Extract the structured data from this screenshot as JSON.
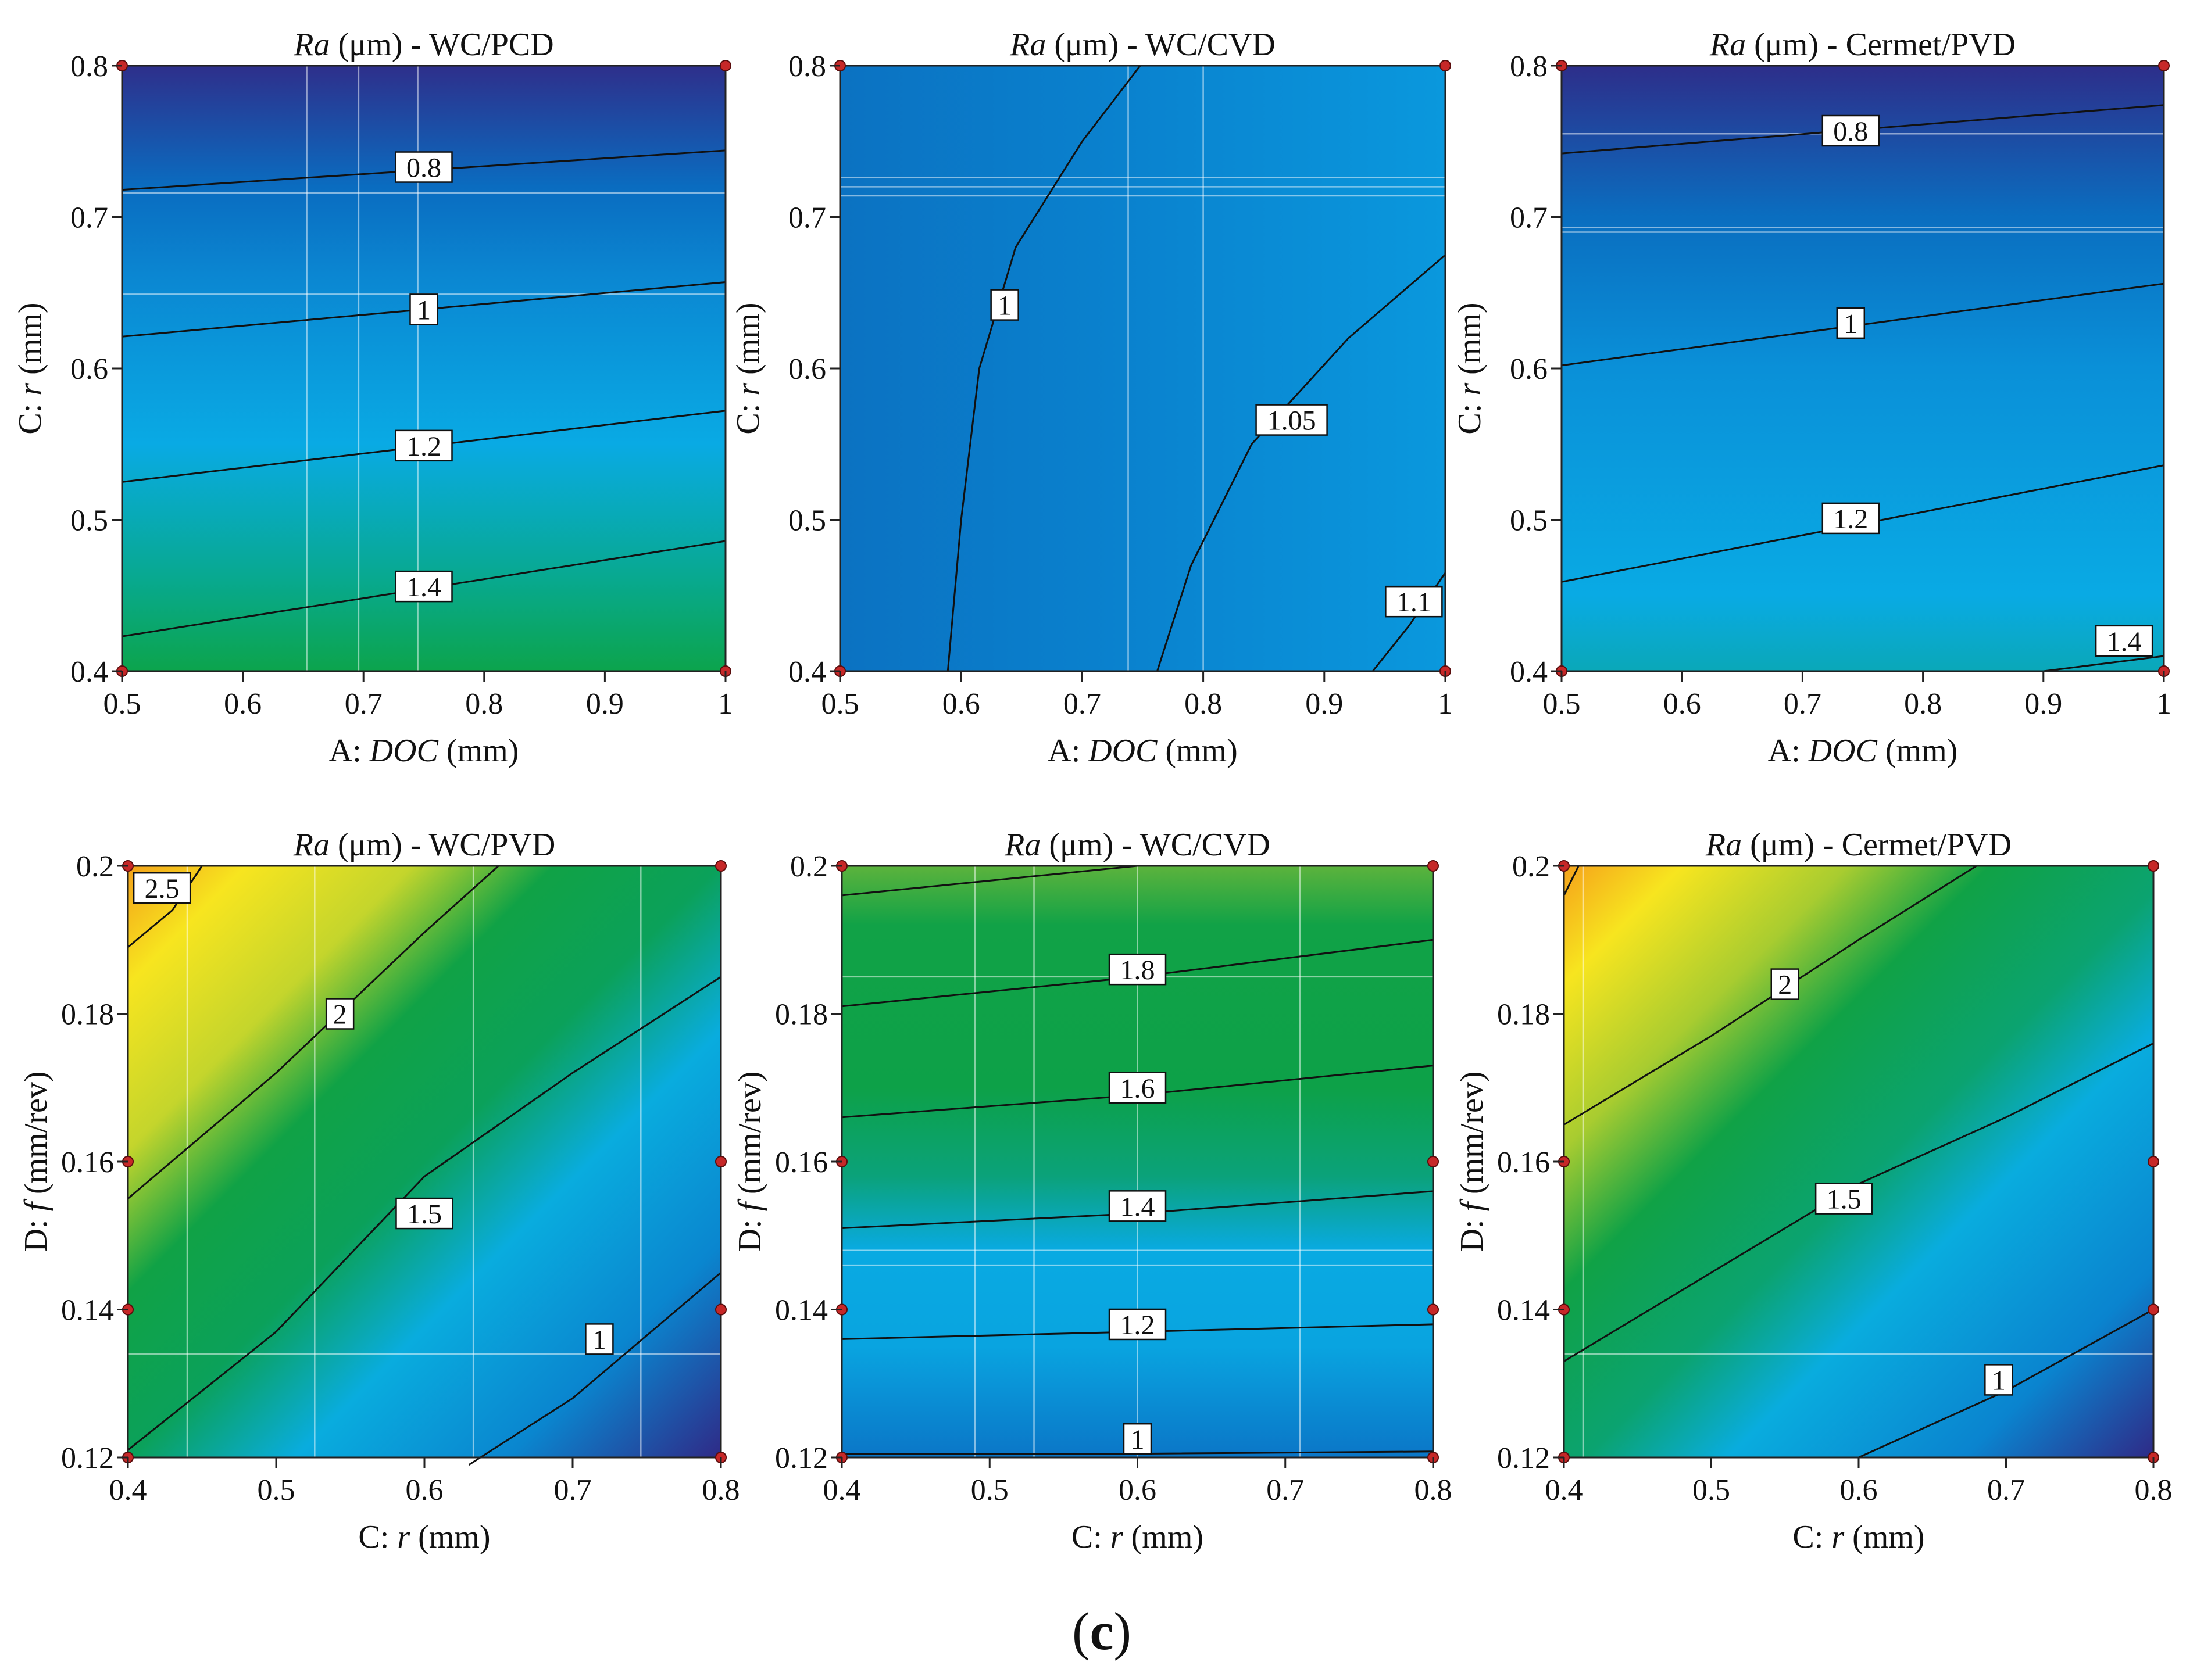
{
  "figure": {
    "caption_open": "(",
    "caption_letter": "c",
    "caption_close": ")",
    "colors": {
      "low": "#2f2a87",
      "mid_low": "#0b74c8",
      "mid": "#08aee8",
      "mid_high": "#0aa04a",
      "high_low": "#e8e823",
      "high": "#f5a21b",
      "contour": "#111111",
      "design_point": "#c62828"
    }
  },
  "chart_data": [
    {
      "id": "p1",
      "type": "contour",
      "title_italic": "Ra",
      "title_rest": " (μm) - WC/PCD",
      "xlabel_prefix": "A: ",
      "xlabel_var": "DOC",
      "xlabel_unit": " (mm)",
      "ylabel_prefix": "C: ",
      "ylabel_var": "r",
      "ylabel_unit": " (mm)",
      "xlim": [
        0.5,
        1.0
      ],
      "ylim": [
        0.4,
        0.8
      ],
      "xticks": [
        "0.5",
        "0.6",
        "0.7",
        "0.8",
        "0.9",
        "1"
      ],
      "yticks": [
        "0.4",
        "0.5",
        "0.6",
        "0.7",
        "0.8"
      ],
      "grid_x": [
        0.653,
        0.696,
        0.745
      ],
      "grid_y": [
        0.716,
        0.649
      ],
      "gradient": [
        {
          "value": 0.4,
          "color": "#0ca44c"
        },
        {
          "value": 0.46,
          "color": "#08a98e"
        },
        {
          "value": 0.55,
          "color": "#09aae4"
        },
        {
          "value": 0.66,
          "color": "#0b87d2"
        },
        {
          "value": 0.72,
          "color": "#0a6cc0"
        },
        {
          "value": 0.8,
          "color": "#2e2f8b"
        }
      ],
      "contours": [
        {
          "label": "0.8",
          "points": [
            [
              0.5,
              0.718
            ],
            [
              1.0,
              0.744
            ]
          ],
          "label_at": [
            0.75,
            0.733
          ]
        },
        {
          "label": "1",
          "points": [
            [
              0.5,
              0.621
            ],
            [
              1.0,
              0.657
            ]
          ],
          "label_at": [
            0.75,
            0.639
          ]
        },
        {
          "label": "1.2",
          "points": [
            [
              0.5,
              0.525
            ],
            [
              1.0,
              0.572
            ]
          ],
          "label_at": [
            0.75,
            0.549
          ]
        },
        {
          "label": "1.4",
          "points": [
            [
              0.5,
              0.423
            ],
            [
              1.0,
              0.486
            ]
          ],
          "label_at": [
            0.75,
            0.456
          ]
        }
      ],
      "design_points": [
        [
          0.5,
          0.8
        ],
        [
          1.0,
          0.8
        ],
        [
          0.5,
          0.4
        ],
        [
          1.0,
          0.4
        ]
      ]
    },
    {
      "id": "p2",
      "type": "contour",
      "title_italic": "Ra",
      "title_rest": " (μm) - WC/CVD",
      "xlabel_prefix": "A: ",
      "xlabel_var": "DOC",
      "xlabel_unit": " (mm)",
      "ylabel_prefix": "C: ",
      "ylabel_var": "r",
      "ylabel_unit": " (mm)",
      "xlim": [
        0.5,
        1.0
      ],
      "ylim": [
        0.4,
        0.8
      ],
      "xticks": [
        "0.5",
        "0.6",
        "0.7",
        "0.8",
        "0.9",
        "1"
      ],
      "yticks": [
        "0.4",
        "0.5",
        "0.6",
        "0.7",
        "0.8"
      ],
      "grid_x": [
        0.738,
        0.8
      ],
      "grid_y": [
        0.726,
        0.72,
        0.714
      ],
      "gradient_horizontal": [
        {
          "value": 0.5,
          "color": "#0b72c2"
        },
        {
          "value": 0.75,
          "color": "#0a83cf"
        },
        {
          "value": 1.0,
          "color": "#0a98dd"
        }
      ],
      "contours": [
        {
          "label": "1",
          "points": [
            [
              0.589,
              0.4
            ],
            [
              0.6,
              0.5
            ],
            [
              0.615,
              0.6
            ],
            [
              0.645,
              0.68
            ],
            [
              0.7,
              0.75
            ],
            [
              0.748,
              0.8
            ]
          ],
          "label_at": [
            0.636,
            0.642
          ]
        },
        {
          "label": "1.05",
          "points": [
            [
              0.762,
              0.4
            ],
            [
              0.79,
              0.47
            ],
            [
              0.84,
              0.55
            ],
            [
              0.92,
              0.62
            ],
            [
              1.0,
              0.675
            ]
          ],
          "label_at": [
            0.873,
            0.566
          ]
        },
        {
          "label": "1.1",
          "points": [
            [
              0.94,
              0.4
            ],
            [
              0.97,
              0.43
            ],
            [
              1.0,
              0.465
            ]
          ],
          "label_at": [
            0.974,
            0.446
          ]
        }
      ],
      "design_points": [
        [
          0.5,
          0.8
        ],
        [
          1.0,
          0.8
        ],
        [
          0.5,
          0.4
        ],
        [
          1.0,
          0.4
        ]
      ]
    },
    {
      "id": "p3",
      "type": "contour",
      "title_italic": "Ra",
      "title_rest": " (μm) - Cermet/PVD",
      "xlabel_prefix": "A: ",
      "xlabel_var": "DOC",
      "xlabel_unit": " (mm)",
      "ylabel_prefix": "C: ",
      "ylabel_var": "r",
      "ylabel_unit": " (mm)",
      "xlim": [
        0.5,
        1.0
      ],
      "ylim": [
        0.4,
        0.8
      ],
      "xticks": [
        "0.5",
        "0.6",
        "0.7",
        "0.8",
        "0.9",
        "1"
      ],
      "yticks": [
        "0.4",
        "0.5",
        "0.6",
        "0.7",
        "0.8"
      ],
      "grid_x": [],
      "grid_y": [
        0.755,
        0.693,
        0.69
      ],
      "gradient": [
        {
          "value": 0.4,
          "color": "#0aa8b8"
        },
        {
          "value": 0.45,
          "color": "#09aae4"
        },
        {
          "value": 0.6,
          "color": "#0a90d8"
        },
        {
          "value": 0.7,
          "color": "#0a6ec0"
        },
        {
          "value": 0.8,
          "color": "#2d2e8a"
        }
      ],
      "contours": [
        {
          "label": "0.8",
          "points": [
            [
              0.5,
              0.742
            ],
            [
              1.0,
              0.774
            ]
          ],
          "label_at": [
            0.74,
            0.757
          ]
        },
        {
          "label": "1",
          "points": [
            [
              0.5,
              0.602
            ],
            [
              1.0,
              0.656
            ]
          ],
          "label_at": [
            0.74,
            0.63
          ]
        },
        {
          "label": "1.2",
          "points": [
            [
              0.5,
              0.459
            ],
            [
              1.0,
              0.536
            ]
          ],
          "label_at": [
            0.74,
            0.501
          ]
        },
        {
          "label": "1.4",
          "points": [
            [
              0.9,
              0.4
            ],
            [
              1.0,
              0.41
            ]
          ],
          "label_at": [
            0.967,
            0.42
          ]
        }
      ],
      "design_points": [
        [
          0.5,
          0.8
        ],
        [
          1.0,
          0.8
        ],
        [
          0.5,
          0.4
        ],
        [
          1.0,
          0.4
        ]
      ]
    },
    {
      "id": "p4",
      "type": "contour",
      "title_italic": "Ra",
      "title_rest": " (μm) - WC/PVD",
      "xlabel_prefix": "C: ",
      "xlabel_var": "r",
      "xlabel_unit": " (mm)",
      "ylabel_prefix": "D: ",
      "ylabel_var": "f",
      "ylabel_unit": " (mm/rev)",
      "xlim": [
        0.4,
        0.8
      ],
      "ylim": [
        0.12,
        0.2
      ],
      "xticks": [
        "0.4",
        "0.5",
        "0.6",
        "0.7",
        "0.8"
      ],
      "yticks": [
        "0.12",
        "0.14",
        "0.16",
        "0.18",
        "0.2"
      ],
      "grid_x": [
        0.44,
        0.526,
        0.633,
        0.746
      ],
      "grid_y": [
        0.134
      ],
      "diagonal_gradient": [
        {
          "offset": 0.0,
          "color": "#f3a21a"
        },
        {
          "offset": 0.1,
          "color": "#f7e51f"
        },
        {
          "offset": 0.24,
          "color": "#c4d52c"
        },
        {
          "offset": 0.36,
          "color": "#10a246"
        },
        {
          "offset": 0.5,
          "color": "#0ba15a"
        },
        {
          "offset": 0.64,
          "color": "#09acde"
        },
        {
          "offset": 0.82,
          "color": "#0a86cf"
        },
        {
          "offset": 1.0,
          "color": "#2f2a87"
        }
      ],
      "contours": [
        {
          "label": "2.5",
          "points": [
            [
              0.4,
              0.189
            ],
            [
              0.43,
              0.194
            ],
            [
              0.45,
              0.2
            ]
          ],
          "label_at": [
            0.423,
            0.197
          ]
        },
        {
          "label": "2",
          "points": [
            [
              0.4,
              0.155
            ],
            [
              0.5,
              0.172
            ],
            [
              0.6,
              0.191
            ],
            [
              0.65,
              0.2
            ]
          ],
          "label_at": [
            0.543,
            0.18
          ]
        },
        {
          "label": "1.5",
          "points": [
            [
              0.4,
              0.121
            ],
            [
              0.5,
              0.137
            ],
            [
              0.6,
              0.158
            ],
            [
              0.7,
              0.172
            ],
            [
              0.8,
              0.185
            ]
          ],
          "label_at": [
            0.6,
            0.153
          ]
        },
        {
          "label": "1",
          "points": [
            [
              0.63,
              0.119
            ],
            [
              0.7,
              0.128
            ],
            [
              0.8,
              0.145
            ]
          ],
          "label_at": [
            0.718,
            0.136
          ]
        }
      ],
      "design_points": [
        [
          0.4,
          0.2
        ],
        [
          0.8,
          0.2
        ],
        [
          0.4,
          0.16
        ],
        [
          0.8,
          0.16
        ],
        [
          0.4,
          0.14
        ],
        [
          0.8,
          0.14
        ],
        [
          0.4,
          0.12
        ],
        [
          0.8,
          0.12
        ]
      ]
    },
    {
      "id": "p5",
      "type": "contour",
      "title_italic": "Ra",
      "title_rest": " (μm) - WC/CVD",
      "xlabel_prefix": "C: ",
      "xlabel_var": "r",
      "xlabel_unit": " (mm)",
      "ylabel_prefix": "D: ",
      "ylabel_var": "f",
      "ylabel_unit": " (mm/rev)",
      "xlim": [
        0.4,
        0.8
      ],
      "ylim": [
        0.12,
        0.2
      ],
      "xticks": [
        "0.4",
        "0.5",
        "0.6",
        "0.7",
        "0.8"
      ],
      "yticks": [
        "0.12",
        "0.14",
        "0.16",
        "0.18",
        "0.2"
      ],
      "grid_x": [
        0.49,
        0.53,
        0.6,
        0.71
      ],
      "grid_y": [
        0.185,
        0.148,
        0.146
      ],
      "gradient": [
        {
          "value": 0.12,
          "color": "#0b76c7"
        },
        {
          "value": 0.135,
          "color": "#09a4e0"
        },
        {
          "value": 0.148,
          "color": "#09aae2"
        },
        {
          "value": 0.158,
          "color": "#0ba27a"
        },
        {
          "value": 0.17,
          "color": "#0da148"
        },
        {
          "value": 0.192,
          "color": "#11a247"
        },
        {
          "value": 0.2,
          "color": "#5cb33c"
        }
      ],
      "contours": [
        {
          "label": "",
          "points": [
            [
              0.4,
              0.196
            ],
            [
              0.55,
              0.199
            ],
            [
              0.6,
              0.2
            ]
          ],
          "label_at": null
        },
        {
          "label": "1.8",
          "points": [
            [
              0.4,
              0.181
            ],
            [
              0.6,
              0.185
            ],
            [
              0.8,
              0.19
            ]
          ],
          "label_at": [
            0.6,
            0.186
          ]
        },
        {
          "label": "1.6",
          "points": [
            [
              0.4,
              0.166
            ],
            [
              0.6,
              0.169
            ],
            [
              0.8,
              0.173
            ]
          ],
          "label_at": [
            0.6,
            0.17
          ]
        },
        {
          "label": "1.4",
          "points": [
            [
              0.4,
              0.151
            ],
            [
              0.6,
              0.153
            ],
            [
              0.8,
              0.156
            ]
          ],
          "label_at": [
            0.6,
            0.154
          ]
        },
        {
          "label": "1.2",
          "points": [
            [
              0.4,
              0.136
            ],
            [
              0.6,
              0.137
            ],
            [
              0.8,
              0.138
            ]
          ],
          "label_at": [
            0.6,
            0.138
          ]
        },
        {
          "label": "1",
          "points": [
            [
              0.4,
              0.1205
            ],
            [
              0.6,
              0.1205
            ],
            [
              0.8,
              0.1208
            ]
          ],
          "label_at": [
            0.6,
            0.1225
          ]
        }
      ],
      "design_points": [
        [
          0.4,
          0.2
        ],
        [
          0.8,
          0.2
        ],
        [
          0.4,
          0.16
        ],
        [
          0.8,
          0.16
        ],
        [
          0.4,
          0.14
        ],
        [
          0.8,
          0.14
        ],
        [
          0.4,
          0.12
        ],
        [
          0.8,
          0.12
        ]
      ]
    },
    {
      "id": "p6",
      "type": "contour",
      "title_italic": "Ra",
      "title_rest": " (μm) - Cermet/PVD",
      "xlabel_prefix": "C: ",
      "xlabel_var": "r",
      "xlabel_unit": " (mm)",
      "ylabel_prefix": "D: ",
      "ylabel_var": "f",
      "ylabel_unit": " (mm/rev)",
      "xlim": [
        0.4,
        0.8
      ],
      "ylim": [
        0.12,
        0.2
      ],
      "xticks": [
        "0.4",
        "0.5",
        "0.6",
        "0.7",
        "0.8"
      ],
      "yticks": [
        "0.12",
        "0.14",
        "0.16",
        "0.18",
        "0.2"
      ],
      "grid_x": [
        0.413
      ],
      "grid_y": [
        0.134
      ],
      "diagonal_gradient": [
        {
          "offset": 0.0,
          "color": "#f5a21b"
        },
        {
          "offset": 0.1,
          "color": "#f7e51f"
        },
        {
          "offset": 0.24,
          "color": "#a8cc30"
        },
        {
          "offset": 0.36,
          "color": "#10a246"
        },
        {
          "offset": 0.52,
          "color": "#0ba370"
        },
        {
          "offset": 0.64,
          "color": "#09acde"
        },
        {
          "offset": 0.84,
          "color": "#0a84cf"
        },
        {
          "offset": 1.0,
          "color": "#2f2a87"
        }
      ],
      "contours": [
        {
          "label": "",
          "points": [
            [
              0.4,
              0.196
            ],
            [
              0.41,
              0.2
            ]
          ],
          "label_at": null
        },
        {
          "label": "2",
          "points": [
            [
              0.4,
              0.165
            ],
            [
              0.5,
              0.177
            ],
            [
              0.6,
              0.19
            ],
            [
              0.68,
              0.2
            ]
          ],
          "label_at": [
            0.55,
            0.184
          ]
        },
        {
          "label": "1.5",
          "points": [
            [
              0.4,
              0.133
            ],
            [
              0.5,
              0.145
            ],
            [
              0.6,
              0.157
            ],
            [
              0.7,
              0.166
            ],
            [
              0.8,
              0.176
            ]
          ],
          "label_at": [
            0.59,
            0.155
          ]
        },
        {
          "label": "1",
          "points": [
            [
              0.6,
              0.12
            ],
            [
              0.7,
              0.129
            ],
            [
              0.8,
              0.14
            ]
          ],
          "label_at": [
            0.695,
            0.1305
          ]
        }
      ],
      "design_points": [
        [
          0.4,
          0.2
        ],
        [
          0.8,
          0.2
        ],
        [
          0.4,
          0.16
        ],
        [
          0.8,
          0.16
        ],
        [
          0.4,
          0.14
        ],
        [
          0.8,
          0.14
        ],
        [
          0.4,
          0.12
        ],
        [
          0.8,
          0.12
        ]
      ]
    }
  ]
}
